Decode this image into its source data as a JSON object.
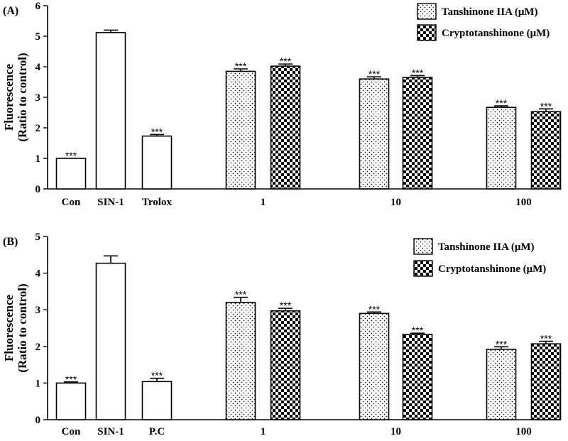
{
  "chart_data": [
    {
      "type": "bar",
      "panel_label": "(A)",
      "ylabel": "Fluorescence",
      "ylabel2": "(Ratio to control)",
      "ylim": [
        0,
        6
      ],
      "yticks": [
        "0",
        "1",
        "2",
        "3",
        "4",
        "5",
        "6"
      ],
      "legend": {
        "placement": "top-right",
        "entries": [
          {
            "name": "Tanshinone IIA (μM)",
            "pattern": "dots"
          },
          {
            "name": "Cryptotanshinone (μM)",
            "pattern": "checker"
          }
        ]
      },
      "groups": [
        {
          "label": "Con",
          "bars": [
            {
              "value": 1.0,
              "error": 0.0,
              "pattern": "open",
              "sig": "***"
            }
          ]
        },
        {
          "label": "SIN-1",
          "bars": [
            {
              "value": 5.12,
              "error": 0.08,
              "pattern": "open",
              "sig": ""
            }
          ]
        },
        {
          "label": "Trolox",
          "bars": [
            {
              "value": 1.73,
              "error": 0.05,
              "pattern": "open",
              "sig": "***"
            }
          ]
        },
        {
          "label": "1",
          "bars": [
            {
              "value": 3.85,
              "error": 0.08,
              "pattern": "dots",
              "sig": "***"
            },
            {
              "value": 4.02,
              "error": 0.07,
              "pattern": "checker",
              "sig": "***"
            }
          ]
        },
        {
          "label": "10",
          "bars": [
            {
              "value": 3.6,
              "error": 0.07,
              "pattern": "dots",
              "sig": "***"
            },
            {
              "value": 3.65,
              "error": 0.06,
              "pattern": "checker",
              "sig": "***"
            }
          ]
        },
        {
          "label": "100",
          "bars": [
            {
              "value": 2.67,
              "error": 0.05,
              "pattern": "dots",
              "sig": "***"
            },
            {
              "value": 2.53,
              "error": 0.09,
              "pattern": "checker",
              "sig": "***"
            }
          ]
        }
      ]
    },
    {
      "type": "bar",
      "panel_label": "(B)",
      "ylabel": "Fluorescence",
      "ylabel2": "(Ratio to control)",
      "ylim": [
        0,
        5
      ],
      "yticks": [
        "0",
        "1",
        "2",
        "3",
        "4",
        "5"
      ],
      "legend": {
        "placement": "top-right",
        "entries": [
          {
            "name": "Tanshinone IIA (μM)",
            "pattern": "dots"
          },
          {
            "name": "Cryptotanshinone (μM)",
            "pattern": "checker"
          }
        ]
      },
      "groups": [
        {
          "label": "Con",
          "bars": [
            {
              "value": 1.0,
              "error": 0.03,
              "pattern": "open",
              "sig": "***"
            }
          ]
        },
        {
          "label": "SIN-1",
          "bars": [
            {
              "value": 4.27,
              "error": 0.2,
              "pattern": "open",
              "sig": ""
            }
          ]
        },
        {
          "label": "P.C",
          "bars": [
            {
              "value": 1.04,
              "error": 0.09,
              "pattern": "open",
              "sig": "***"
            }
          ]
        },
        {
          "label": "1",
          "bars": [
            {
              "value": 3.2,
              "error": 0.14,
              "pattern": "dots",
              "sig": "***"
            },
            {
              "value": 2.97,
              "error": 0.07,
              "pattern": "checker",
              "sig": "***"
            }
          ]
        },
        {
          "label": "10",
          "bars": [
            {
              "value": 2.9,
              "error": 0.04,
              "pattern": "dots",
              "sig": "***"
            },
            {
              "value": 2.33,
              "error": 0.03,
              "pattern": "checker",
              "sig": "***"
            }
          ]
        },
        {
          "label": "100",
          "bars": [
            {
              "value": 1.92,
              "error": 0.07,
              "pattern": "dots",
              "sig": "***"
            },
            {
              "value": 2.07,
              "error": 0.07,
              "pattern": "checker",
              "sig": "***"
            }
          ]
        }
      ]
    }
  ]
}
